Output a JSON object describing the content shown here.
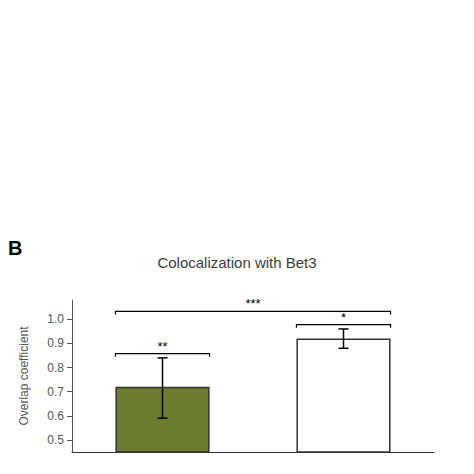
{
  "chart_data": {
    "type": "bar",
    "title": "Colocalization with Bet3",
    "ylabel": "Overlap coefficient",
    "categories": [
      null,
      null
    ],
    "values": [
      0.72,
      0.92
    ],
    "error_upper": [
      0.12,
      0.04
    ],
    "error_lower": [
      0.13,
      0.04
    ],
    "colors": [
      "#6b7c2e",
      "#ffffff"
    ],
    "ylim": [
      0.45,
      1.08
    ],
    "yticks": [
      0.5,
      0.6,
      0.7,
      0.8,
      0.9,
      {
        "value": 1.0,
        "label": "1.0"
      }
    ],
    "grid": false,
    "tick_labels": "y",
    "annotations": [
      {
        "text": "B"
      },
      {
        "text": "**",
        "from": 0,
        "to": 0,
        "y": 0.845
      },
      {
        "text": "***",
        "from": 0,
        "to": 1,
        "y": 1.02
      },
      {
        "text": "*",
        "from": 1,
        "to": 1,
        "y": 0.965
      }
    ]
  }
}
